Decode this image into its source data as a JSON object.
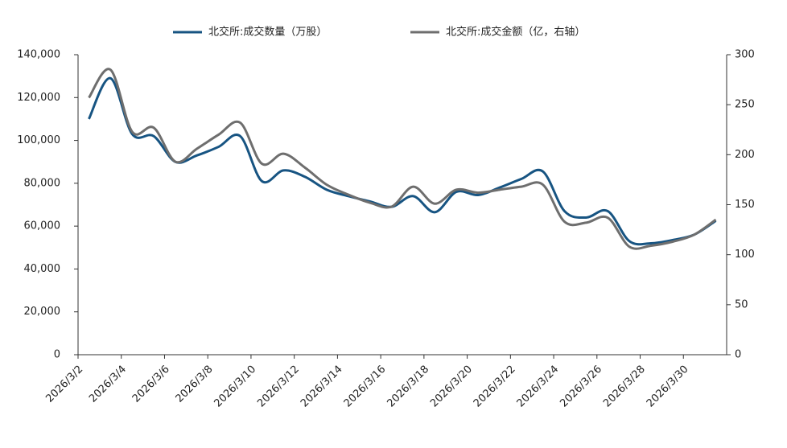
{
  "chart_data": {
    "type": "line",
    "categories": [
      "2026/3/2",
      null,
      "2026/3/4",
      null,
      "2026/3/6",
      null,
      "2026/3/8",
      null,
      "2026/3/10",
      null,
      "2026/3/12",
      null,
      "2026/3/14",
      null,
      "2026/3/16",
      null,
      "2026/3/18",
      null,
      "2026/3/20",
      null,
      "2026/3/22",
      null,
      "2026/3/24",
      null,
      "2026/3/26",
      null,
      "2026/3/28",
      null,
      "2026/3/30",
      null
    ],
    "series": [
      {
        "name": "北交所:成交数量（万股）",
        "color": "#175482",
        "values": [
          110000,
          129000,
          103000,
          102000,
          90000,
          93000,
          97000,
          102000,
          81000,
          86000,
          83000,
          77000,
          74000,
          71500,
          69000,
          74000,
          66500,
          76000,
          74500,
          78000,
          82000,
          85500,
          67000,
          64000,
          67000,
          53000,
          52000,
          53500,
          56000,
          62500
        ]
      },
      {
        "name": "北交所:成交金额（亿，右轴）",
        "color": "#6e6e6e",
        "axis": "y2",
        "values": [
          257,
          285,
          223,
          227,
          193,
          206,
          220,
          232,
          191,
          201,
          187,
          170,
          160,
          152,
          148,
          168,
          151,
          165,
          162,
          165,
          168,
          170,
          133,
          132,
          137,
          108,
          109,
          113,
          120,
          135
        ]
      }
    ],
    "ylim": [
      0,
      140000
    ],
    "yticks": [
      0,
      {
        "value": 20000,
        "label": "20,000"
      },
      {
        "value": 40000,
        "label": "40,000"
      },
      {
        "value": 60000,
        "label": "60,000"
      },
      {
        "value": 80000,
        "label": "80,000"
      },
      {
        "value": 100000,
        "label": "100,000"
      },
      {
        "value": 120000,
        "label": "120,000"
      },
      {
        "value": 140000,
        "label": "140,000"
      }
    ],
    "y2lim": [
      0,
      300
    ],
    "y2ticks": [
      0,
      50,
      100,
      150,
      200,
      250,
      300
    ],
    "legend": "top"
  }
}
